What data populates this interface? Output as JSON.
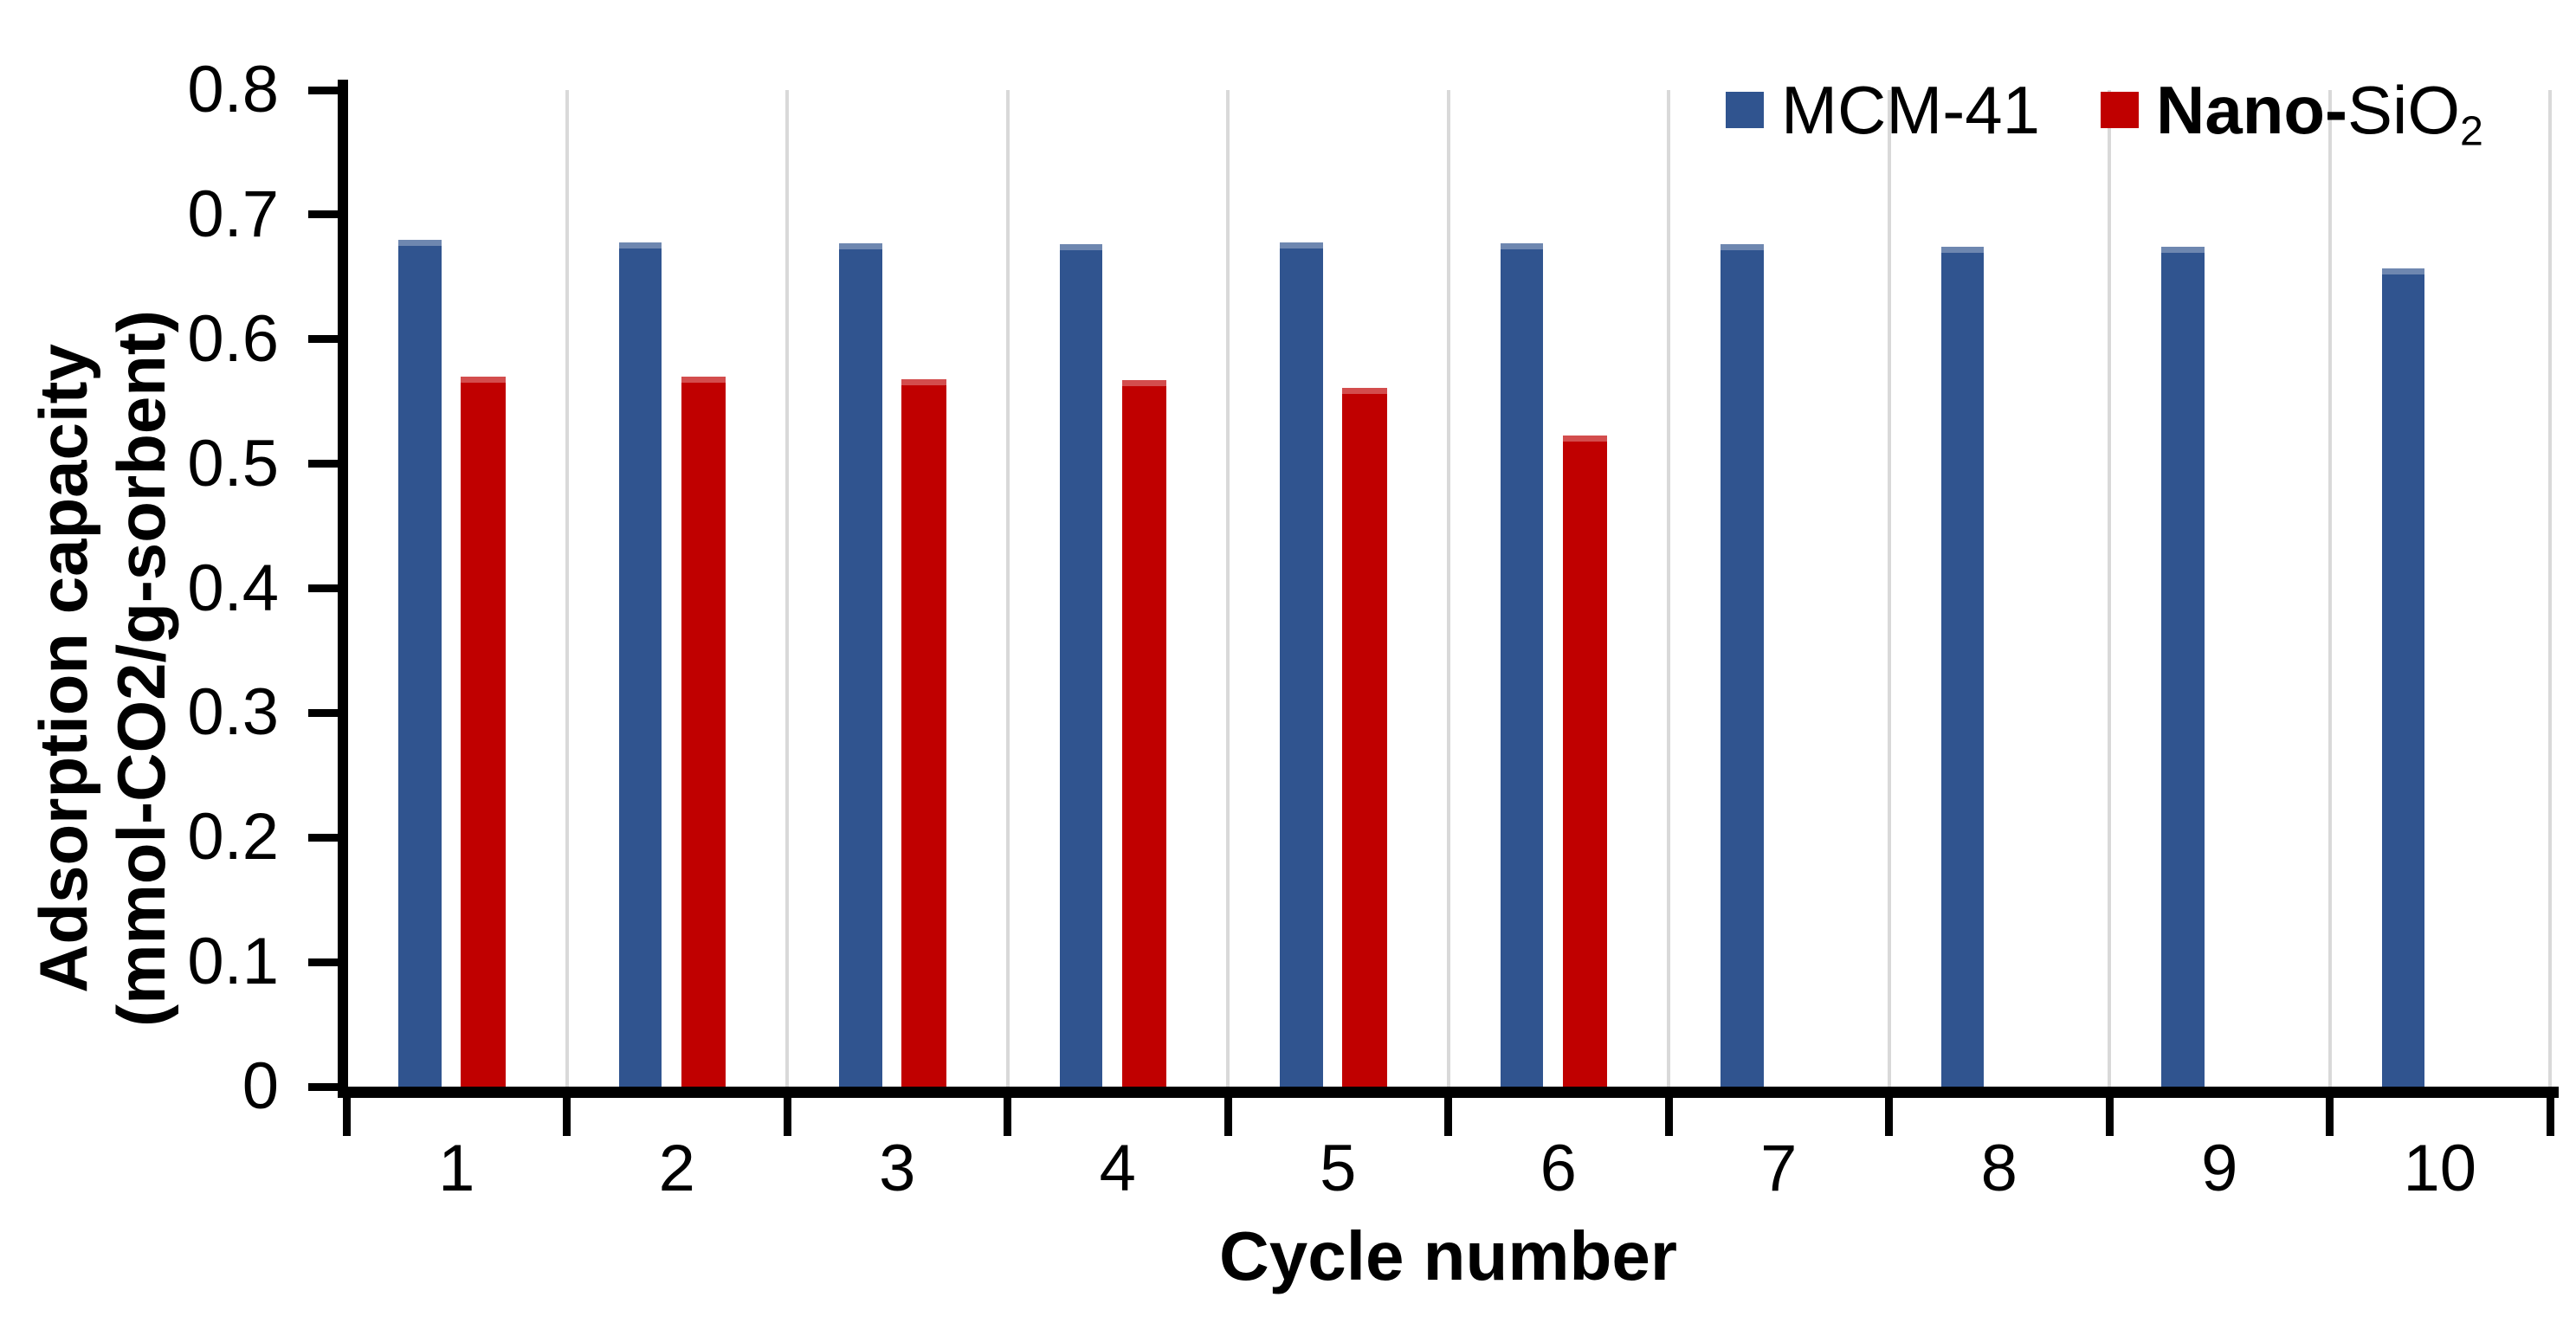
{
  "chart_data": {
    "type": "bar",
    "title": "",
    "xlabel": "Cycle number",
    "ylabel_line1": "Adsorption capacity",
    "ylabel_line2": "(mmol-CO2/g-sorbent)",
    "ylim": [
      0,
      0.8
    ],
    "ytick_labels": [
      "0.8",
      "0.7",
      "0.6",
      "0.5",
      "0.4",
      "0.3",
      "0.2",
      "0.1",
      "0"
    ],
    "categories": [
      "1",
      "2",
      "3",
      "4",
      "5",
      "6",
      "7",
      "8",
      "9",
      "10"
    ],
    "series": [
      {
        "name": "MCM-41",
        "color": "#30548F",
        "values": [
          0.68,
          0.678,
          0.677,
          0.676,
          0.678,
          0.677,
          0.676,
          0.674,
          0.674,
          0.657
        ]
      },
      {
        "name": "Nano-SiO2",
        "color": "#C00000",
        "values": [
          0.57,
          0.57,
          0.568,
          0.567,
          0.561,
          0.523,
          null,
          null,
          null,
          null
        ]
      }
    ],
    "grid": "vertical gridlines at category boundaries",
    "gridline_color": "#D9D9D9",
    "axis_color": "#000000",
    "legend_position": "top-right"
  },
  "legend": {
    "items": [
      {
        "label": "MCM-41",
        "color": "#30548F"
      },
      {
        "prefix_bold": "Nano-",
        "base": "SiO",
        "subscript": "2",
        "color": "#C00000"
      }
    ]
  }
}
